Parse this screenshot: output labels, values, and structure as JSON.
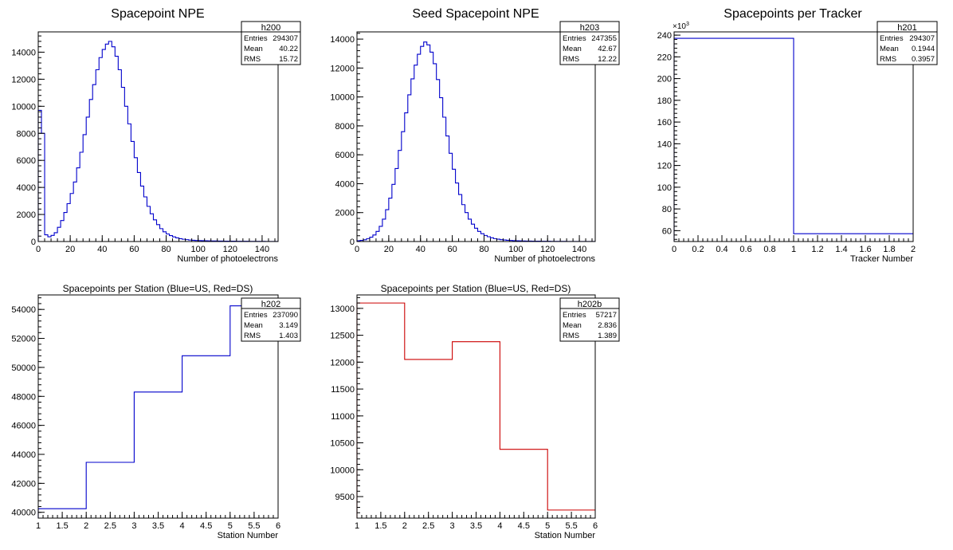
{
  "colors": {
    "blue": "#0000cc",
    "red": "#cc0000",
    "axis": "#000000"
  },
  "chart_data": [
    {
      "type": "histogram",
      "title": "Spacepoint NPE",
      "xlabel": "Number of photoelectrons",
      "xlim": [
        0,
        150
      ],
      "ylim": [
        0,
        15500
      ],
      "xticks": [
        0,
        20,
        40,
        60,
        80,
        100,
        120,
        140
      ],
      "yticks": [
        0,
        2000,
        4000,
        6000,
        8000,
        10000,
        12000,
        14000
      ],
      "color": "blue",
      "stats": {
        "name": "h200",
        "entries": "294307",
        "mean": "40.22",
        "rms": "15.72"
      },
      "bin_width": 2,
      "values": [
        9700,
        8000,
        500,
        350,
        450,
        650,
        1050,
        1550,
        2150,
        2800,
        3550,
        4400,
        5450,
        6600,
        7900,
        9200,
        10500,
        11600,
        12700,
        13600,
        14200,
        14600,
        14800,
        14400,
        13700,
        12700,
        11400,
        10000,
        8700,
        7400,
        6200,
        5100,
        4100,
        3300,
        2600,
        2050,
        1600,
        1250,
        950,
        720,
        560,
        440,
        340,
        270,
        210,
        170,
        140,
        110,
        95,
        80,
        70,
        60,
        55,
        50,
        45,
        40,
        35,
        32,
        30,
        28,
        26,
        24,
        22,
        20,
        18,
        16,
        14,
        12,
        10,
        9,
        8,
        7,
        6,
        5,
        4
      ]
    },
    {
      "type": "histogram",
      "title": "Seed Spacepoint NPE",
      "xlabel": "Number of photoelectrons",
      "xlim": [
        0,
        150
      ],
      "ylim": [
        0,
        14500
      ],
      "xticks": [
        0,
        20,
        40,
        60,
        80,
        100,
        120,
        140
      ],
      "yticks": [
        0,
        2000,
        4000,
        6000,
        8000,
        10000,
        12000,
        14000
      ],
      "color": "blue",
      "stats": {
        "name": "h203",
        "entries": "247355",
        "mean": "42.67",
        "rms": "12.22"
      },
      "bin_width": 2,
      "values": [
        50,
        80,
        120,
        200,
        300,
        450,
        700,
        1050,
        1550,
        2200,
        3000,
        3950,
        5050,
        6300,
        7600,
        8900,
        10150,
        11250,
        12200,
        12950,
        13500,
        13800,
        13600,
        13100,
        12300,
        11200,
        9950,
        8600,
        7300,
        6100,
        5000,
        4050,
        3250,
        2550,
        2000,
        1550,
        1200,
        920,
        700,
        540,
        420,
        330,
        260,
        200,
        160,
        130,
        105,
        85,
        70,
        60,
        50,
        45,
        40,
        35,
        30,
        27,
        25,
        22,
        20,
        18,
        16,
        14,
        12,
        10,
        9,
        8,
        7,
        6,
        5,
        4,
        3,
        3,
        2,
        2,
        1
      ]
    },
    {
      "type": "histogram",
      "title": "Spacepoints per Tracker",
      "xlabel": "Tracker Number",
      "xlim": [
        0,
        2
      ],
      "ylim": [
        50,
        243
      ],
      "xticks": [
        0,
        0.2,
        0.4,
        0.6,
        0.8,
        1,
        1.2,
        1.4,
        1.6,
        1.8,
        2
      ],
      "yticks": [
        60,
        80,
        100,
        120,
        140,
        160,
        180,
        200,
        220,
        240
      ],
      "y_multiplier": "×10",
      "y_multiplier_exp": "3",
      "color": "blue",
      "stats": {
        "name": "h201",
        "entries": "294307",
        "mean": "0.1944",
        "rms": "0.3957"
      },
      "bin_width": 1,
      "values": [
        237.1,
        57.2
      ]
    },
    {
      "type": "histogram",
      "title": "Spacepoints per Station (Blue=US, Red=DS)",
      "xlabel": "Station Number",
      "xlim": [
        1,
        6
      ],
      "ylim": [
        39600,
        55000
      ],
      "xticks": [
        1,
        1.5,
        2,
        2.5,
        3,
        3.5,
        4,
        4.5,
        5,
        5.5,
        6
      ],
      "yticks": [
        40000,
        42000,
        44000,
        46000,
        48000,
        50000,
        52000,
        54000
      ],
      "color": "blue",
      "stats": {
        "name": "h202",
        "entries": "237090",
        "mean": "3.149",
        "rms": "1.403"
      },
      "bin_width": 1,
      "values": [
        40250,
        43450,
        48300,
        50800,
        54250
      ]
    },
    {
      "type": "histogram",
      "title": "Spacepoints per Station (Blue=US, Red=DS)",
      "xlabel": "Station Number",
      "xlim": [
        1,
        6
      ],
      "ylim": [
        9100,
        13250
      ],
      "xticks": [
        1,
        1.5,
        2,
        2.5,
        3,
        3.5,
        4,
        4.5,
        5,
        5.5,
        6
      ],
      "yticks": [
        9500,
        10000,
        10500,
        11000,
        11500,
        12000,
        12500,
        13000
      ],
      "color": "red",
      "stats": {
        "name": "h202b",
        "entries": "57217",
        "mean": "2.836",
        "rms": "1.389"
      },
      "bin_width": 1,
      "values": [
        13100,
        12050,
        12380,
        10380,
        9250
      ]
    }
  ]
}
